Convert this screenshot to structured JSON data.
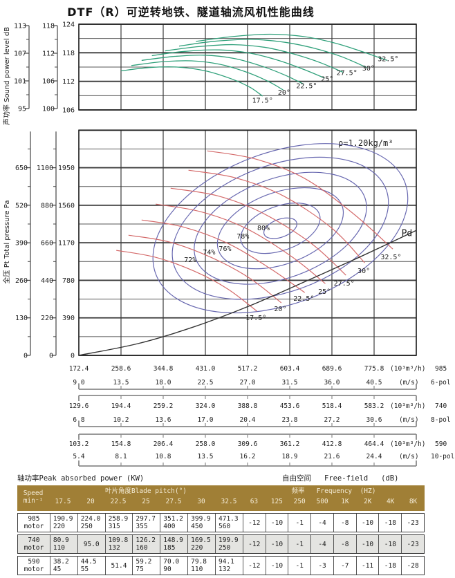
{
  "title": "DTF（R）可逆转地铁、隧道轴流风机性能曲线",
  "captions": {
    "power": "轴功率Peak absorbed power (KW)",
    "free_field": "自由空间   Free-field   (dB)"
  },
  "chart_data": [
    {
      "type": "line",
      "name": "sound-power-level",
      "ylabel": "声功率 Sound power level dB",
      "y_axis": {
        "inner_ticks": [
          124,
          118,
          112,
          106
        ],
        "mid_ticks": [
          118,
          112,
          106,
          100
        ],
        "outer_ticks": [
          113,
          107,
          101,
          95
        ],
        "inner_range": [
          106,
          124
        ]
      },
      "x_range_mps": [
        9,
        45
      ],
      "grid": {
        "cols": 8,
        "rows": 6
      },
      "series": [
        {
          "name": "17.5°",
          "points": [
            [
              13.5,
              114.2
            ],
            [
              16.5,
              114.9
            ],
            [
              19.5,
              115.0
            ],
            [
              22.5,
              114.2
            ],
            [
              25.3,
              112.5
            ],
            [
              27.3,
              110.7
            ],
            [
              28.6,
              108.9
            ]
          ],
          "label_at": [
            28.6,
            107.5
          ]
        },
        {
          "name": "20°",
          "points": [
            [
              14.6,
              115.3
            ],
            [
              17.8,
              116.1
            ],
            [
              21.0,
              116.3
            ],
            [
              24.0,
              115.6
            ],
            [
              26.8,
              114.0
            ],
            [
              29.2,
              112.0
            ],
            [
              30.8,
              110.2
            ]
          ],
          "label_at": [
            30.9,
            109.2
          ]
        },
        {
          "name": "22.5°",
          "points": [
            [
              15.7,
              116.4
            ],
            [
              19.0,
              117.2
            ],
            [
              22.4,
              117.5
            ],
            [
              25.6,
              116.8
            ],
            [
              28.5,
              115.2
            ],
            [
              31.0,
              113.3
            ],
            [
              33.0,
              111.4
            ]
          ],
          "label_at": [
            33.3,
            110.6
          ]
        },
        {
          "name": "25°",
          "points": [
            [
              16.8,
              117.4
            ],
            [
              20.3,
              118.3
            ],
            [
              24.0,
              118.6
            ],
            [
              27.3,
              117.9
            ],
            [
              30.3,
              116.4
            ],
            [
              33.0,
              114.5
            ],
            [
              35.2,
              112.7
            ]
          ],
          "label_at": [
            35.5,
            112.0
          ]
        },
        {
          "name": "27.5°",
          "points": [
            [
              18.2,
              118.4
            ],
            [
              21.8,
              119.3
            ],
            [
              25.5,
              119.7
            ],
            [
              29.0,
              119.1
            ],
            [
              32.0,
              117.7
            ],
            [
              34.8,
              115.9
            ],
            [
              37.2,
              113.9
            ]
          ],
          "label_at": [
            37.6,
            113.3
          ]
        },
        {
          "name": "30°",
          "points": [
            [
              19.7,
              119.4
            ],
            [
              23.4,
              120.4
            ],
            [
              27.4,
              120.8
            ],
            [
              31.0,
              120.2
            ],
            [
              34.2,
              118.9
            ],
            [
              37.0,
              117.2
            ],
            [
              39.7,
              114.9
            ]
          ],
          "label_at": [
            39.9,
            114.3
          ]
        },
        {
          "name": "32.5°",
          "points": [
            [
              21.5,
              120.4
            ],
            [
              25.4,
              121.4
            ],
            [
              29.4,
              121.9
            ],
            [
              33.0,
              121.4
            ],
            [
              36.2,
              120.1
            ],
            [
              39.0,
              118.4
            ],
            [
              41.9,
              116.4
            ]
          ],
          "label_at": [
            42.0,
            116.2
          ]
        }
      ]
    },
    {
      "type": "line",
      "name": "total-pressure",
      "ylabel": "全压 Pt Total pressure Pa",
      "density_note": "ρ=1.20kg/m³",
      "y_axis": {
        "inner_ticks": [
          1950,
          1560,
          1170,
          780,
          390,
          0
        ],
        "mid_ticks": [
          1100,
          880,
          660,
          440,
          220,
          0
        ],
        "outer_ticks": [
          650,
          520,
          390,
          260,
          130,
          0
        ],
        "inner_max": 2340
      },
      "x_range_mps": [
        9,
        45
      ],
      "pd": {
        "label": "Pd",
        "points": [
          [
            9,
            0
          ],
          [
            15.3,
            122
          ],
          [
            21.2,
            294
          ],
          [
            27.1,
            510
          ],
          [
            33,
            761
          ],
          [
            38.9,
            1019
          ],
          [
            45,
            1299
          ]
        ],
        "label_at": [
          44.0,
          1240
        ]
      },
      "blade_curves": [
        {
          "name": "17.5°",
          "points": [
            [
              13.0,
              1091
            ],
            [
              17.2,
              1019
            ],
            [
              21.3,
              876
            ],
            [
              24.9,
              689
            ],
            [
              28.0,
              459
            ]
          ],
          "label_at": [
            27.9,
            388
          ]
        },
        {
          "name": "20°",
          "points": [
            [
              14.3,
              1249
            ],
            [
              18.7,
              1177
            ],
            [
              23.1,
              1019
            ],
            [
              27.2,
              804
            ],
            [
              30.6,
              546
            ]
          ],
          "label_at": [
            30.5,
            481
          ]
        },
        {
          "name": "22.5°",
          "points": [
            [
              15.7,
              1407
            ],
            [
              20.1,
              1335
            ],
            [
              24.9,
              1163
            ],
            [
              29.4,
              904
            ],
            [
              33.1,
              653
            ]
          ],
          "label_at": [
            33.0,
            589
          ]
        },
        {
          "name": "25°",
          "points": [
            [
              17.2,
              1572
            ],
            [
              22.0,
              1493
            ],
            [
              26.8,
              1321
            ],
            [
              31.6,
              1034
            ],
            [
              35.3,
              746
            ]
          ],
          "label_at": [
            35.2,
            660
          ]
        },
        {
          "name": "27.5°",
          "points": [
            [
              18.8,
              1737
            ],
            [
              23.8,
              1658
            ],
            [
              28.6,
              1479
            ],
            [
              33.8,
              1163
            ],
            [
              37.5,
              833
            ]
          ],
          "label_at": [
            37.3,
            746
          ]
        },
        {
          "name": "30°",
          "points": [
            [
              20.7,
              1924
            ],
            [
              25.7,
              1845
            ],
            [
              30.8,
              1658
            ],
            [
              36.0,
              1321
            ],
            [
              39.5,
              962
            ]
          ],
          "label_at": [
            39.4,
            876
          ]
        },
        {
          "name": "32.5°",
          "points": [
            [
              22.7,
              2125
            ],
            [
              27.9,
              2039
            ],
            [
              33.1,
              1838
            ],
            [
              38.2,
              1479
            ],
            [
              42.5,
              1105
            ]
          ],
          "label_at": [
            42.3,
            1019
          ]
        }
      ],
      "efficiency_contours": {
        "center": [
          30.5,
          1321
        ],
        "rotation_deg": -20,
        "rings_rx_mps": [
          1.84,
          4.43,
          7.01,
          9.59,
          12.02,
          14.16
        ],
        "rings_ry_pa": [
          93,
          230,
          373,
          517,
          660,
          790
        ],
        "labels": [
          {
            "text": "80%",
            "at": [
              28.7,
              1321
            ]
          },
          {
            "text": "78%",
            "at": [
              26.5,
              1235
            ]
          },
          {
            "text": "76%",
            "at": [
              24.6,
              1105
            ]
          },
          {
            "text": "74%",
            "at": [
              22.9,
              1069
            ]
          },
          {
            "text": "72%",
            "at": [
              20.9,
              990
            ]
          }
        ]
      }
    }
  ],
  "x_scales": [
    {
      "rpm": "985",
      "pole": "6-pol",
      "flow": [
        "172.4",
        "258.6",
        "344.8",
        "431.0",
        "517.2",
        "603.4",
        "689.6",
        "775.8"
      ],
      "flow_unit": "(10³m³/h)",
      "speed": [
        "9.0",
        "13.5",
        "18.0",
        "22.5",
        "27.0",
        "31.5",
        "36.0",
        "40.5"
      ],
      "speed_unit": "(m/s)"
    },
    {
      "rpm": "740",
      "pole": "8-pol",
      "flow": [
        "129.6",
        "194.4",
        "259.2",
        "324.0",
        "388.8",
        "453.6",
        "518.4",
        "583.2"
      ],
      "flow_unit": "(10³m³/h)",
      "speed": [
        "6.8",
        "10.2",
        "13.6",
        "17.0",
        "20.4",
        "23.8",
        "27.2",
        "30.6"
      ],
      "speed_unit": "(m/s)"
    },
    {
      "rpm": "590",
      "pole": "10-pol",
      "flow": [
        "103.2",
        "154.8",
        "206.4",
        "258.0",
        "309.6",
        "361.2",
        "412.8",
        "464.4"
      ],
      "flow_unit": "(10³m³/h)",
      "speed": [
        "5.4",
        "8.1",
        "10.8",
        "13.5",
        "16.2",
        "18.9",
        "21.6",
        "24.4"
      ],
      "speed_unit": "(m/s)"
    }
  ],
  "table": {
    "speed_header": [
      "Speed",
      "min⁻¹"
    ],
    "pitch_header": "叶片角度Blade pitch(°)",
    "freq_header": "频率   Frequency  (HZ)",
    "pitch_cols": [
      "17.5",
      "20",
      "22.5",
      "25",
      "27.5",
      "30",
      "32.5"
    ],
    "freq_cols": [
      "63",
      "125",
      "250",
      "500",
      "1K",
      "2K",
      "4K",
      "8K"
    ],
    "rows": [
      {
        "speed": [
          "985",
          "motor"
        ],
        "power": [
          "190.9|220",
          "224.0|250",
          "258.9|315",
          "297.7|355",
          "351.2|400",
          "399.9|450",
          "471.3|560"
        ],
        "atten": [
          "-12",
          "-10",
          "-1",
          "-4",
          "-8",
          "-10",
          "-18",
          "-23"
        ]
      },
      {
        "speed": [
          "740",
          "motor"
        ],
        "power": [
          "80.9|110",
          "95.0",
          "109.8|132",
          "126.2|160",
          "148.9|185",
          "169.5|220",
          "199.9|250"
        ],
        "atten": [
          "-12",
          "-10",
          "-1",
          "-4",
          "-8",
          "-10",
          "-18",
          "-23"
        ]
      },
      {
        "speed": [
          "590",
          "motor"
        ],
        "power": [
          "38.2|45",
          "44.5|55",
          "51.4",
          "59.2|75",
          "70.0|90",
          "79.8|110",
          "94.1|132"
        ],
        "atten": [
          "-12",
          "-10",
          "-1",
          "-3",
          "-7",
          "-11",
          "-18",
          "-28"
        ]
      }
    ]
  },
  "colors": {
    "green": "#2fa07a",
    "red": "#d46a6a",
    "blue": "#6868b0",
    "gold": "#a07f36",
    "grid": "#3a3a3a",
    "row_alt": "#e4e4e1"
  }
}
